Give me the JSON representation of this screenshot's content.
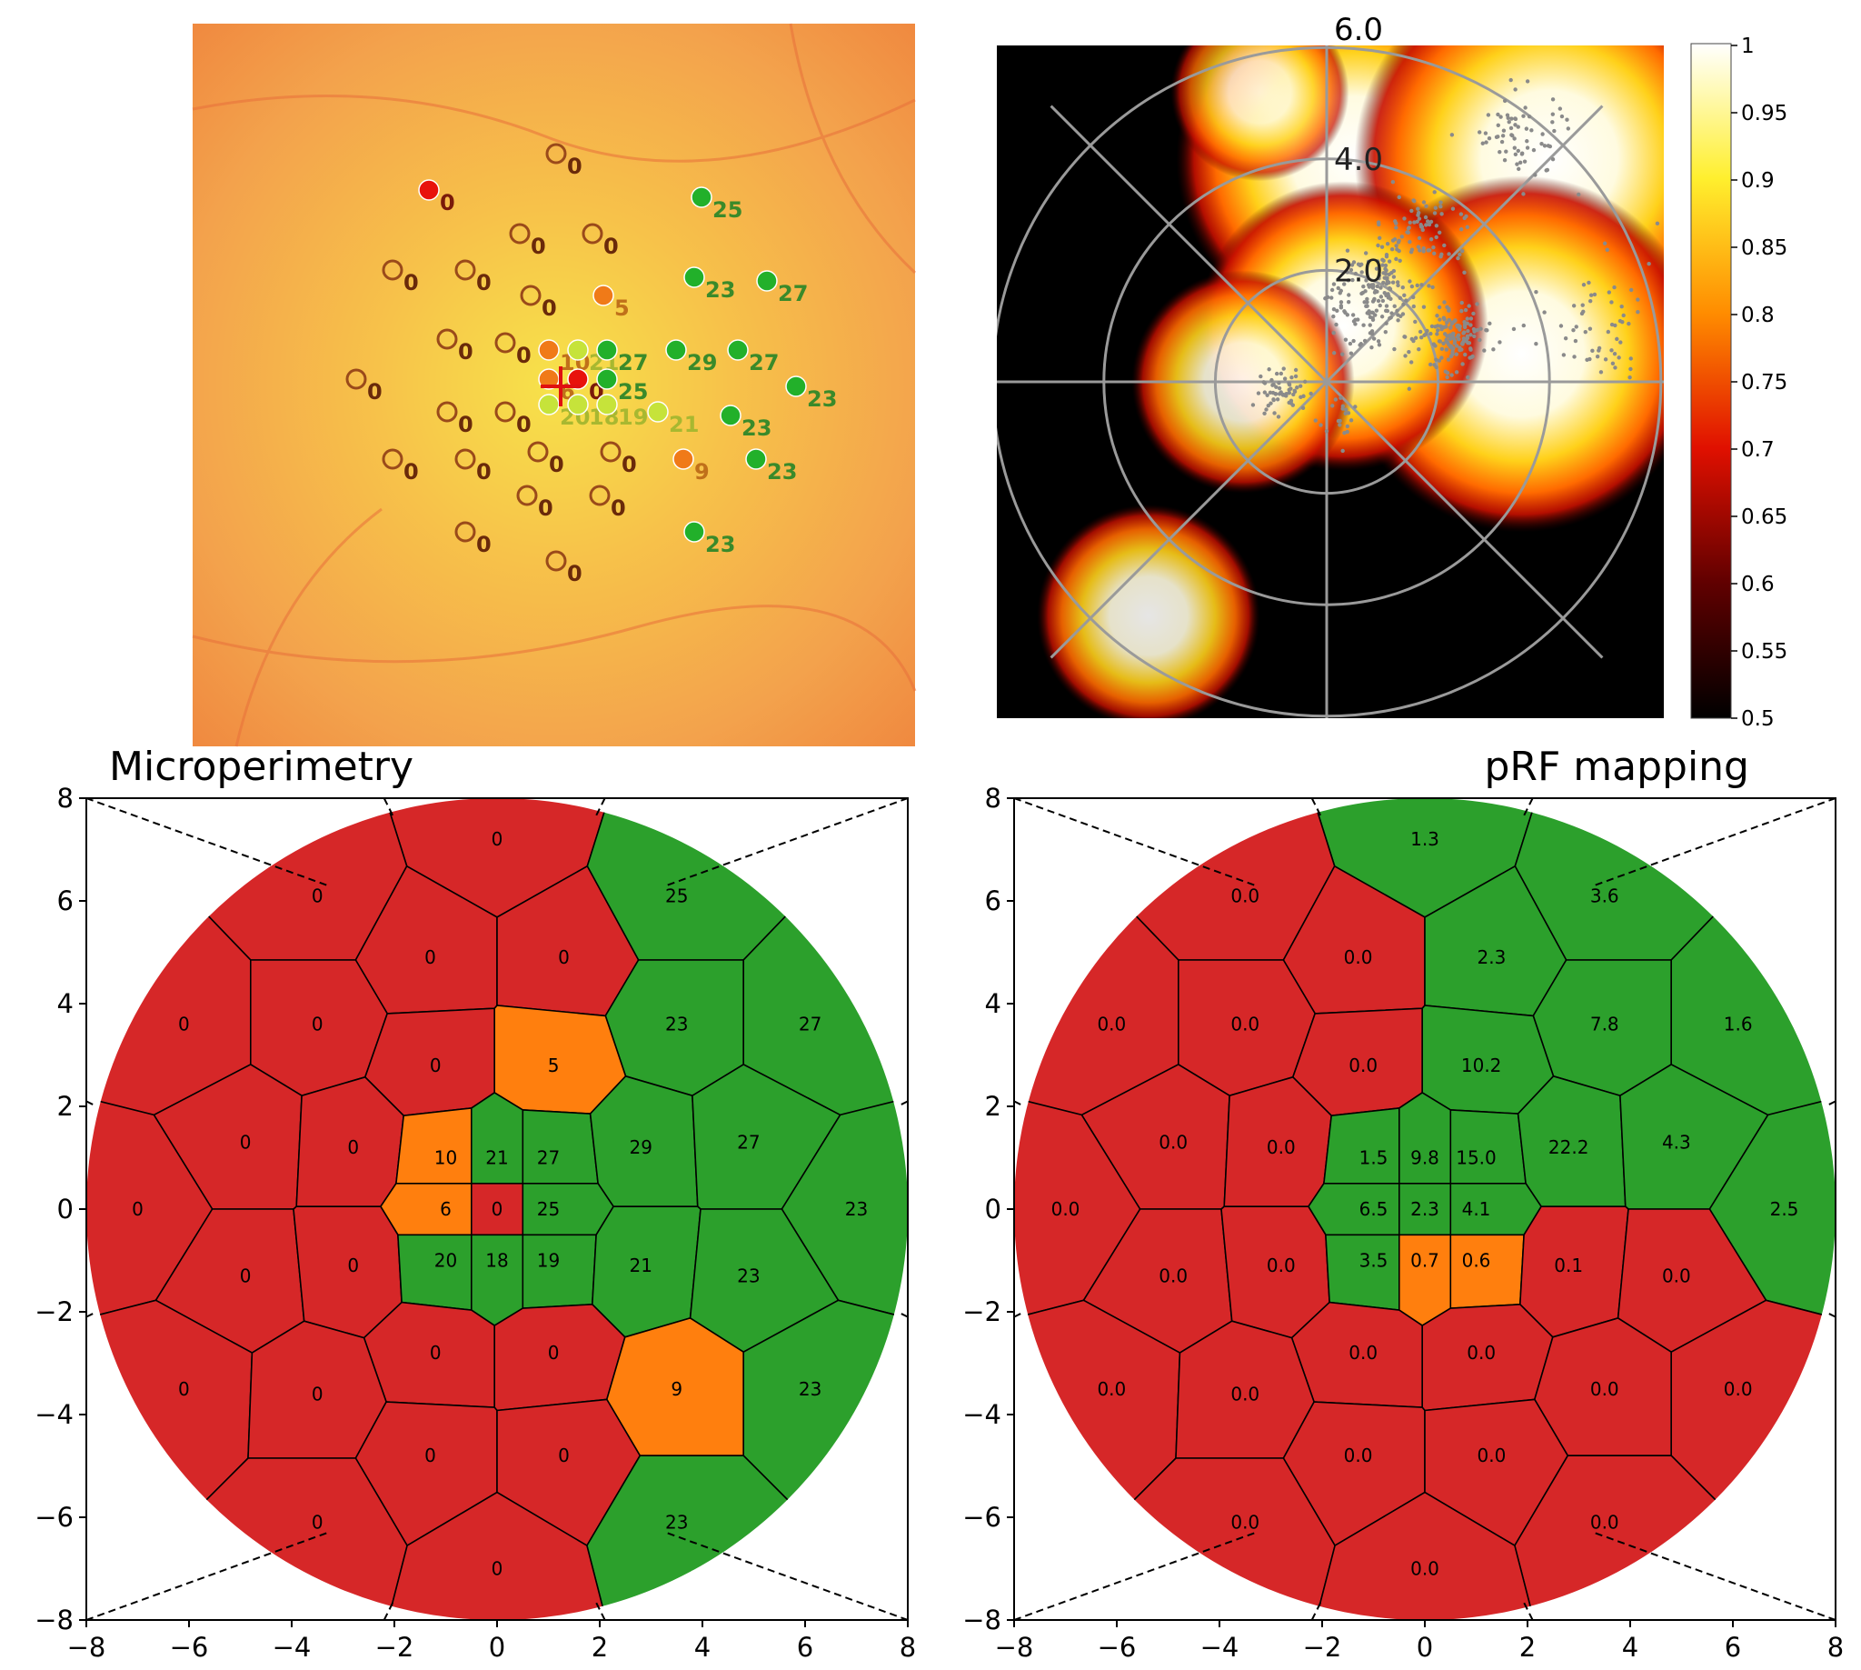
{
  "colors": {
    "red": "#d62728",
    "green": "#2ca02c",
    "orange": "#ff7f0e",
    "fundus_bg": "#f4a24a",
    "polar_bg": "#000000",
    "grid": "#9a9a9a"
  },
  "fundus": {
    "points": [
      {
        "x": 0.0,
        "y": 6.4,
        "v": "0",
        "s": "empty"
      },
      {
        "x": -3.5,
        "y": 5.4,
        "v": "0",
        "s": "red"
      },
      {
        "x": 4.0,
        "y": 5.2,
        "v": "25",
        "s": "green"
      },
      {
        "x": -1.0,
        "y": 4.2,
        "v": "0",
        "s": "empty"
      },
      {
        "x": 1.0,
        "y": 4.2,
        "v": "0",
        "s": "empty"
      },
      {
        "x": -4.5,
        "y": 3.2,
        "v": "0",
        "s": "empty"
      },
      {
        "x": -2.5,
        "y": 3.2,
        "v": "0",
        "s": "empty"
      },
      {
        "x": -0.7,
        "y": 2.5,
        "v": "0",
        "s": "empty"
      },
      {
        "x": 1.3,
        "y": 2.5,
        "v": "5",
        "s": "orange"
      },
      {
        "x": 3.8,
        "y": 3.0,
        "v": "23",
        "s": "green"
      },
      {
        "x": 5.8,
        "y": 2.9,
        "v": "27",
        "s": "green"
      },
      {
        "x": -3.0,
        "y": 1.3,
        "v": "0",
        "s": "empty"
      },
      {
        "x": -1.4,
        "y": 1.2,
        "v": "0",
        "s": "empty"
      },
      {
        "x": -0.2,
        "y": 1.0,
        "v": "10",
        "s": "orange"
      },
      {
        "x": 0.6,
        "y": 1.0,
        "v": "21",
        "s": "lime"
      },
      {
        "x": 1.4,
        "y": 1.0,
        "v": "27",
        "s": "green"
      },
      {
        "x": 3.3,
        "y": 1.0,
        "v": "29",
        "s": "green"
      },
      {
        "x": 5.0,
        "y": 1.0,
        "v": "27",
        "s": "green"
      },
      {
        "x": -5.5,
        "y": 0.2,
        "v": "0",
        "s": "empty"
      },
      {
        "x": -0.2,
        "y": 0.2,
        "v": "6",
        "s": "orange"
      },
      {
        "x": 0.6,
        "y": 0.2,
        "v": "0",
        "s": "red"
      },
      {
        "x": 1.4,
        "y": 0.2,
        "v": "25",
        "s": "green"
      },
      {
        "x": 6.6,
        "y": 0.0,
        "v": "23",
        "s": "green"
      },
      {
        "x": -3.0,
        "y": -0.7,
        "v": "0",
        "s": "empty"
      },
      {
        "x": -1.4,
        "y": -0.7,
        "v": "0",
        "s": "empty"
      },
      {
        "x": -0.2,
        "y": -0.5,
        "v": "20",
        "s": "lime"
      },
      {
        "x": 0.6,
        "y": -0.5,
        "v": "18",
        "s": "lime"
      },
      {
        "x": 1.4,
        "y": -0.5,
        "v": "19",
        "s": "lime"
      },
      {
        "x": 2.8,
        "y": -0.7,
        "v": "21",
        "s": "lime"
      },
      {
        "x": 4.8,
        "y": -0.8,
        "v": "23",
        "s": "green"
      },
      {
        "x": -4.5,
        "y": -2.0,
        "v": "0",
        "s": "empty"
      },
      {
        "x": -2.5,
        "y": -2.0,
        "v": "0",
        "s": "empty"
      },
      {
        "x": -0.5,
        "y": -1.8,
        "v": "0",
        "s": "empty"
      },
      {
        "x": 1.5,
        "y": -1.8,
        "v": "0",
        "s": "empty"
      },
      {
        "x": 3.5,
        "y": -2.0,
        "v": "9",
        "s": "orange"
      },
      {
        "x": 5.5,
        "y": -2.0,
        "v": "23",
        "s": "green"
      },
      {
        "x": -0.8,
        "y": -3.0,
        "v": "0",
        "s": "empty"
      },
      {
        "x": 1.2,
        "y": -3.0,
        "v": "0",
        "s": "empty"
      },
      {
        "x": -2.5,
        "y": -4.0,
        "v": "0",
        "s": "empty"
      },
      {
        "x": 3.8,
        "y": -4.0,
        "v": "23",
        "s": "green"
      },
      {
        "x": 0.0,
        "y": -4.8,
        "v": "0",
        "s": "empty"
      }
    ]
  },
  "prf_density": {
    "ring_labels": [
      "2.0",
      "4.0",
      "6.0"
    ],
    "colorbar_ticks": [
      "1",
      "0.95",
      "0.9",
      "0.85",
      "0.8",
      "0.75",
      "0.7",
      "0.65",
      "0.6",
      "0.55",
      "0.5"
    ],
    "clusters": [
      {
        "x": 0.9,
        "y": 1.4,
        "n": 180,
        "spread": 0.6
      },
      {
        "x": 2.3,
        "y": 0.8,
        "n": 140,
        "spread": 0.4
      },
      {
        "x": -0.8,
        "y": -0.2,
        "n": 60,
        "spread": 0.3
      },
      {
        "x": 1.6,
        "y": 2.8,
        "n": 80,
        "spread": 0.6
      },
      {
        "x": 3.5,
        "y": 4.5,
        "n": 70,
        "spread": 0.6
      },
      {
        "x": 5.0,
        "y": 1.0,
        "n": 60,
        "spread": 0.9
      },
      {
        "x": 0.3,
        "y": -0.7,
        "n": 20,
        "spread": 0.3
      }
    ],
    "hotspots": [
      {
        "x": 0.5,
        "y": 4.0,
        "r": 3.2,
        "w": 1.0
      },
      {
        "x": 4.0,
        "y": 4.0,
        "r": 3.5,
        "w": 1.0
      },
      {
        "x": 3.5,
        "y": 0.5,
        "r": 3.2,
        "w": 1.0
      },
      {
        "x": 0.3,
        "y": 1.0,
        "r": 2.6,
        "w": 1.0
      },
      {
        "x": -1.5,
        "y": 0.0,
        "r": 2.0,
        "w": 0.9
      },
      {
        "x": -3.2,
        "y": -4.2,
        "r": 2.0,
        "w": 0.9
      },
      {
        "x": -1.2,
        "y": 5.2,
        "r": 1.6,
        "w": 0.8
      }
    ]
  },
  "chart_data": [
    {
      "type": "heatmap",
      "title": "Microperimetry",
      "xlim": [
        -8,
        8
      ],
      "ylim": [
        -8,
        8
      ],
      "ticks": [
        "−8",
        "−6",
        "−4",
        "−2",
        "0",
        "2",
        "4",
        "6",
        "8"
      ],
      "cells": [
        {
          "x": 0.0,
          "y": 7.2,
          "label": "0",
          "status": "red"
        },
        {
          "x": -3.5,
          "y": 6.1,
          "label": "0",
          "status": "red"
        },
        {
          "x": 3.5,
          "y": 6.1,
          "label": "25",
          "status": "green"
        },
        {
          "x": -1.3,
          "y": 4.9,
          "label": "0",
          "status": "red"
        },
        {
          "x": 1.3,
          "y": 4.9,
          "label": "0",
          "status": "red"
        },
        {
          "x": -6.1,
          "y": 3.6,
          "label": "0",
          "status": "red"
        },
        {
          "x": -3.5,
          "y": 3.6,
          "label": "0",
          "status": "red"
        },
        {
          "x": 3.5,
          "y": 3.6,
          "label": "23",
          "status": "green"
        },
        {
          "x": 6.1,
          "y": 3.6,
          "label": "27",
          "status": "green"
        },
        {
          "x": -1.2,
          "y": 2.8,
          "label": "0",
          "status": "red"
        },
        {
          "x": 1.1,
          "y": 2.8,
          "label": "5",
          "status": "orange"
        },
        {
          "x": -4.9,
          "y": 1.3,
          "label": "0",
          "status": "red"
        },
        {
          "x": -2.8,
          "y": 1.2,
          "label": "0",
          "status": "red"
        },
        {
          "x": -1.0,
          "y": 1.0,
          "label": "10",
          "status": "orange"
        },
        {
          "x": 0.0,
          "y": 1.0,
          "label": "21",
          "status": "green"
        },
        {
          "x": 1.0,
          "y": 1.0,
          "label": "27",
          "status": "green"
        },
        {
          "x": 2.8,
          "y": 1.2,
          "label": "29",
          "status": "green"
        },
        {
          "x": 4.9,
          "y": 1.3,
          "label": "27",
          "status": "green"
        },
        {
          "x": -7.0,
          "y": 0.0,
          "label": "0",
          "status": "red"
        },
        {
          "x": -1.0,
          "y": 0.0,
          "label": "6",
          "status": "orange"
        },
        {
          "x": 0.0,
          "y": 0.0,
          "label": "0",
          "status": "red"
        },
        {
          "x": 1.0,
          "y": 0.0,
          "label": "25",
          "status": "green"
        },
        {
          "x": 7.0,
          "y": 0.0,
          "label": "23",
          "status": "green"
        },
        {
          "x": -4.9,
          "y": -1.3,
          "label": "0",
          "status": "red"
        },
        {
          "x": -2.8,
          "y": -1.1,
          "label": "0",
          "status": "red"
        },
        {
          "x": -1.0,
          "y": -1.0,
          "label": "20",
          "status": "green"
        },
        {
          "x": 0.0,
          "y": -1.0,
          "label": "18",
          "status": "green"
        },
        {
          "x": 1.0,
          "y": -1.0,
          "label": "19",
          "status": "green"
        },
        {
          "x": 2.8,
          "y": -1.1,
          "label": "21",
          "status": "green"
        },
        {
          "x": 4.9,
          "y": -1.3,
          "label": "23",
          "status": "green"
        },
        {
          "x": -1.2,
          "y": -2.8,
          "label": "0",
          "status": "red"
        },
        {
          "x": 1.1,
          "y": -2.8,
          "label": "0",
          "status": "red"
        },
        {
          "x": -6.1,
          "y": -3.5,
          "label": "0",
          "status": "red"
        },
        {
          "x": -3.5,
          "y": -3.6,
          "label": "0",
          "status": "red"
        },
        {
          "x": 3.5,
          "y": -3.5,
          "label": "9",
          "status": "orange"
        },
        {
          "x": 6.1,
          "y": -3.5,
          "label": "23",
          "status": "green"
        },
        {
          "x": -1.3,
          "y": -4.8,
          "label": "0",
          "status": "red"
        },
        {
          "x": 1.3,
          "y": -4.8,
          "label": "0",
          "status": "red"
        },
        {
          "x": -3.5,
          "y": -6.1,
          "label": "0",
          "status": "red"
        },
        {
          "x": 3.5,
          "y": -6.1,
          "label": "23",
          "status": "green"
        },
        {
          "x": 0.0,
          "y": -7.0,
          "label": "0",
          "status": "red"
        }
      ]
    },
    {
      "type": "heatmap",
      "title": "pRF mapping",
      "xlim": [
        -8,
        8
      ],
      "ylim": [
        -8,
        8
      ],
      "ticks": [
        "−8",
        "−6",
        "−4",
        "−2",
        "0",
        "2",
        "4",
        "6",
        "8"
      ],
      "cells": [
        {
          "x": 0.0,
          "y": 7.2,
          "label": "1.3",
          "status": "green"
        },
        {
          "x": -3.5,
          "y": 6.1,
          "label": "0.0",
          "status": "red"
        },
        {
          "x": 3.5,
          "y": 6.1,
          "label": "3.6",
          "status": "green"
        },
        {
          "x": -1.3,
          "y": 4.9,
          "label": "0.0",
          "status": "red"
        },
        {
          "x": 1.3,
          "y": 4.9,
          "label": "2.3",
          "status": "green"
        },
        {
          "x": -6.1,
          "y": 3.6,
          "label": "0.0",
          "status": "red"
        },
        {
          "x": -3.5,
          "y": 3.6,
          "label": "0.0",
          "status": "red"
        },
        {
          "x": 3.5,
          "y": 3.6,
          "label": "7.8",
          "status": "green"
        },
        {
          "x": 6.1,
          "y": 3.6,
          "label": "1.6",
          "status": "green"
        },
        {
          "x": -1.2,
          "y": 2.8,
          "label": "0.0",
          "status": "red"
        },
        {
          "x": 1.1,
          "y": 2.8,
          "label": "10.2",
          "status": "green"
        },
        {
          "x": -4.9,
          "y": 1.3,
          "label": "0.0",
          "status": "red"
        },
        {
          "x": -2.8,
          "y": 1.2,
          "label": "0.0",
          "status": "red"
        },
        {
          "x": -1.0,
          "y": 1.0,
          "label": "1.5",
          "status": "green"
        },
        {
          "x": 0.0,
          "y": 1.0,
          "label": "9.8",
          "status": "green"
        },
        {
          "x": 1.0,
          "y": 1.0,
          "label": "15.0",
          "status": "green"
        },
        {
          "x": 2.8,
          "y": 1.2,
          "label": "22.2",
          "status": "green"
        },
        {
          "x": 4.9,
          "y": 1.3,
          "label": "4.3",
          "status": "green"
        },
        {
          "x": -7.0,
          "y": 0.0,
          "label": "0.0",
          "status": "red"
        },
        {
          "x": -1.0,
          "y": 0.0,
          "label": "6.5",
          "status": "green"
        },
        {
          "x": 0.0,
          "y": 0.0,
          "label": "2.3",
          "status": "green"
        },
        {
          "x": 1.0,
          "y": 0.0,
          "label": "4.1",
          "status": "green"
        },
        {
          "x": 7.0,
          "y": 0.0,
          "label": "2.5",
          "status": "green"
        },
        {
          "x": -4.9,
          "y": -1.3,
          "label": "0.0",
          "status": "red"
        },
        {
          "x": -2.8,
          "y": -1.1,
          "label": "0.0",
          "status": "red"
        },
        {
          "x": -1.0,
          "y": -1.0,
          "label": "3.5",
          "status": "green"
        },
        {
          "x": 0.0,
          "y": -1.0,
          "label": "0.7",
          "status": "orange"
        },
        {
          "x": 1.0,
          "y": -1.0,
          "label": "0.6",
          "status": "orange"
        },
        {
          "x": 2.8,
          "y": -1.1,
          "label": "0.1",
          "status": "red"
        },
        {
          "x": 4.9,
          "y": -1.3,
          "label": "0.0",
          "status": "red"
        },
        {
          "x": -1.2,
          "y": -2.8,
          "label": "0.0",
          "status": "red"
        },
        {
          "x": 1.1,
          "y": -2.8,
          "label": "0.0",
          "status": "red"
        },
        {
          "x": -6.1,
          "y": -3.5,
          "label": "0.0",
          "status": "red"
        },
        {
          "x": -3.5,
          "y": -3.6,
          "label": "0.0",
          "status": "red"
        },
        {
          "x": 3.5,
          "y": -3.5,
          "label": "0.0",
          "status": "red"
        },
        {
          "x": 6.1,
          "y": -3.5,
          "label": "0.0",
          "status": "red"
        },
        {
          "x": -1.3,
          "y": -4.8,
          "label": "0.0",
          "status": "red"
        },
        {
          "x": 1.3,
          "y": -4.8,
          "label": "0.0",
          "status": "red"
        },
        {
          "x": -3.5,
          "y": -6.1,
          "label": "0.0",
          "status": "red"
        },
        {
          "x": 3.5,
          "y": -6.1,
          "label": "0.0",
          "status": "red"
        },
        {
          "x": 0.0,
          "y": -7.0,
          "label": "0.0",
          "status": "red"
        }
      ]
    }
  ]
}
